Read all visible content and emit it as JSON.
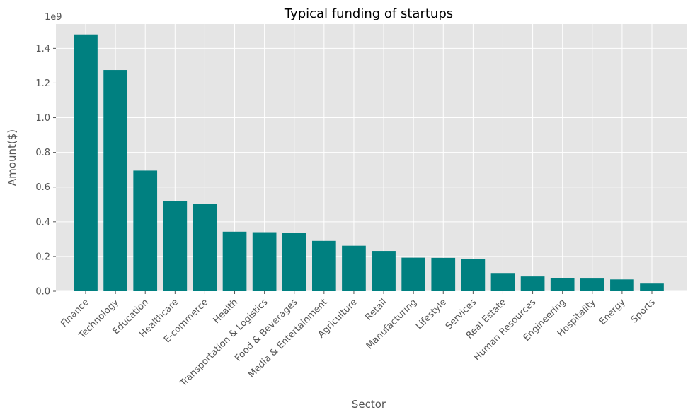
{
  "chart_data": {
    "type": "bar",
    "title": "Typical funding of startups",
    "xlabel": "Sector",
    "ylabel": "Amount($)",
    "y_offset_label": "1e9",
    "categories": [
      "Finance",
      "Technology",
      "Education",
      "Healthcare",
      "E-commerce",
      "Health",
      "Transportation & Logistics",
      "Food & Beverages",
      "Media & Entertainment",
      "Agriculture",
      "Retail",
      "Manufacturing",
      "Lifestyle",
      "Services",
      "Real Estate",
      "Human Resources",
      "Engineering",
      "Hospitality",
      "Energy",
      "Sports"
    ],
    "values": [
      1480000000,
      1275000000,
      695000000,
      518000000,
      505000000,
      343000000,
      340000000,
      338000000,
      290000000,
      262000000,
      232000000,
      193000000,
      192000000,
      187000000,
      105000000,
      85000000,
      77000000,
      73000000,
      68000000,
      44000000
    ],
    "ylim": [
      0,
      1540000000
    ],
    "yticks": [
      0,
      200000000,
      400000000,
      600000000,
      800000000,
      1000000000,
      1200000000,
      1400000000
    ],
    "ytick_labels": [
      "0.0",
      "0.2",
      "0.4",
      "0.6",
      "0.8",
      "1.0",
      "1.2",
      "1.4"
    ],
    "grid": true,
    "colors": {
      "bar": "#008080",
      "plot_bg": "#E5E5E5",
      "grid": "#FFFFFF"
    }
  }
}
